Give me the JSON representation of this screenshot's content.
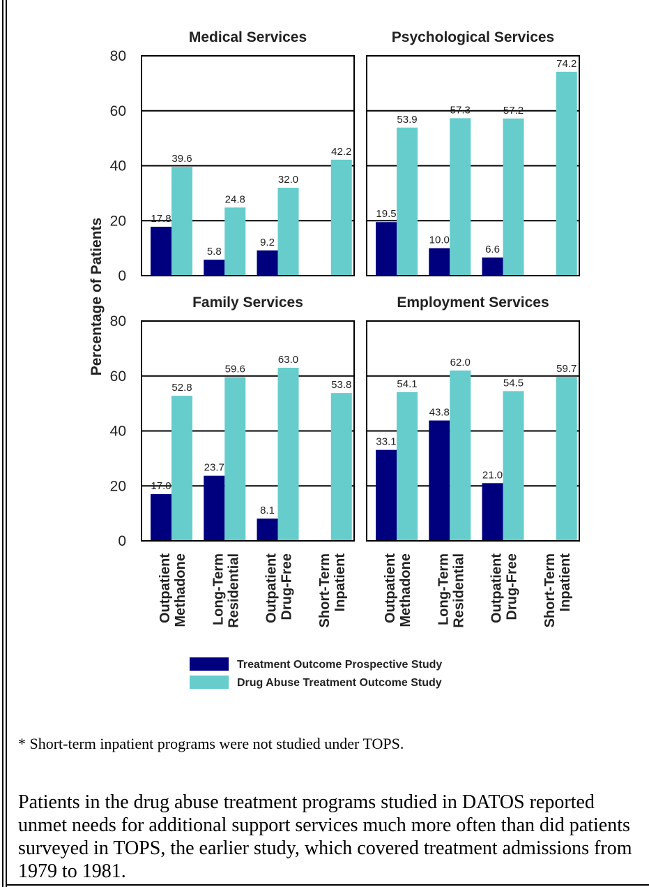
{
  "chart_data": {
    "type": "bar",
    "ylabel": "Percentage of Patients",
    "ylim": [
      0,
      80
    ],
    "yticks": [
      0,
      20,
      40,
      60,
      80
    ],
    "categories": [
      "Outpatient Methadone",
      "Long-Term Residential",
      "Outpatient Drug-Free",
      "Short-Term Inpatient"
    ],
    "category_lines": [
      [
        "Outpatient",
        "Methadone"
      ],
      [
        "Long-Term",
        "Residential"
      ],
      [
        "Outpatient",
        "Drug-Free"
      ],
      [
        "Short-Term",
        "Inpatient"
      ]
    ],
    "legend": {
      "placement": "bottom",
      "items": [
        {
          "name": "Treatment Outcome Prospective Study",
          "color": "#00007f"
        },
        {
          "name": "Drug Abuse Treatment Outcome Study",
          "color": "#66cccc"
        }
      ]
    },
    "panels": [
      {
        "title": "Medical Services",
        "series": [
          {
            "name": "Treatment Outcome Prospective Study",
            "values": [
              17.8,
              5.8,
              9.2,
              null
            ],
            "labels": [
              "17.8",
              "5.8",
              "9.2",
              ""
            ]
          },
          {
            "name": "Drug Abuse Treatment Outcome Study",
            "values": [
              39.6,
              24.8,
              32.0,
              42.2
            ],
            "labels": [
              "39.6",
              "24.8",
              "32.0",
              "42.2"
            ]
          }
        ]
      },
      {
        "title": "Psychological Services",
        "series": [
          {
            "name": "Treatment Outcome Prospective Study",
            "values": [
              19.5,
              10.0,
              6.6,
              null
            ],
            "labels": [
              "19.5",
              "10.0",
              "6.6",
              ""
            ]
          },
          {
            "name": "Drug Abuse Treatment Outcome Study",
            "values": [
              53.9,
              57.3,
              57.2,
              74.2
            ],
            "labels": [
              "53.9",
              "57.3",
              "57.2",
              "74.2"
            ]
          }
        ]
      },
      {
        "title": "Family Services",
        "series": [
          {
            "name": "Treatment Outcome Prospective Study",
            "values": [
              17.0,
              23.7,
              8.1,
              null
            ],
            "labels": [
              "17.0",
              "23.7",
              "8.1",
              ""
            ]
          },
          {
            "name": "Drug Abuse Treatment Outcome Study",
            "values": [
              52.8,
              59.6,
              63.0,
              53.8
            ],
            "labels": [
              "52.8",
              "59.6",
              "63.0",
              "53.8"
            ]
          }
        ]
      },
      {
        "title": "Employment Services",
        "series": [
          {
            "name": "Treatment Outcome Prospective Study",
            "values": [
              33.1,
              43.8,
              21.0,
              null
            ],
            "labels": [
              "33.1",
              "43.8",
              "21.0",
              ""
            ]
          },
          {
            "name": "Drug Abuse Treatment Outcome Study",
            "values": [
              54.1,
              62.0,
              54.5,
              59.7
            ],
            "labels": [
              "54.1",
              "62.0",
              "54.5",
              "59.7"
            ]
          }
        ]
      }
    ]
  },
  "footnote": "* Short-term inpatient programs were not studied under TOPS.",
  "paragraph": "Patients in the drug abuse treatment programs studied in DATOS reported unmet needs for additional support services much more often than did patients surveyed in TOPS, the earlier study, which covered treatment admissions from 1979 to 1981."
}
